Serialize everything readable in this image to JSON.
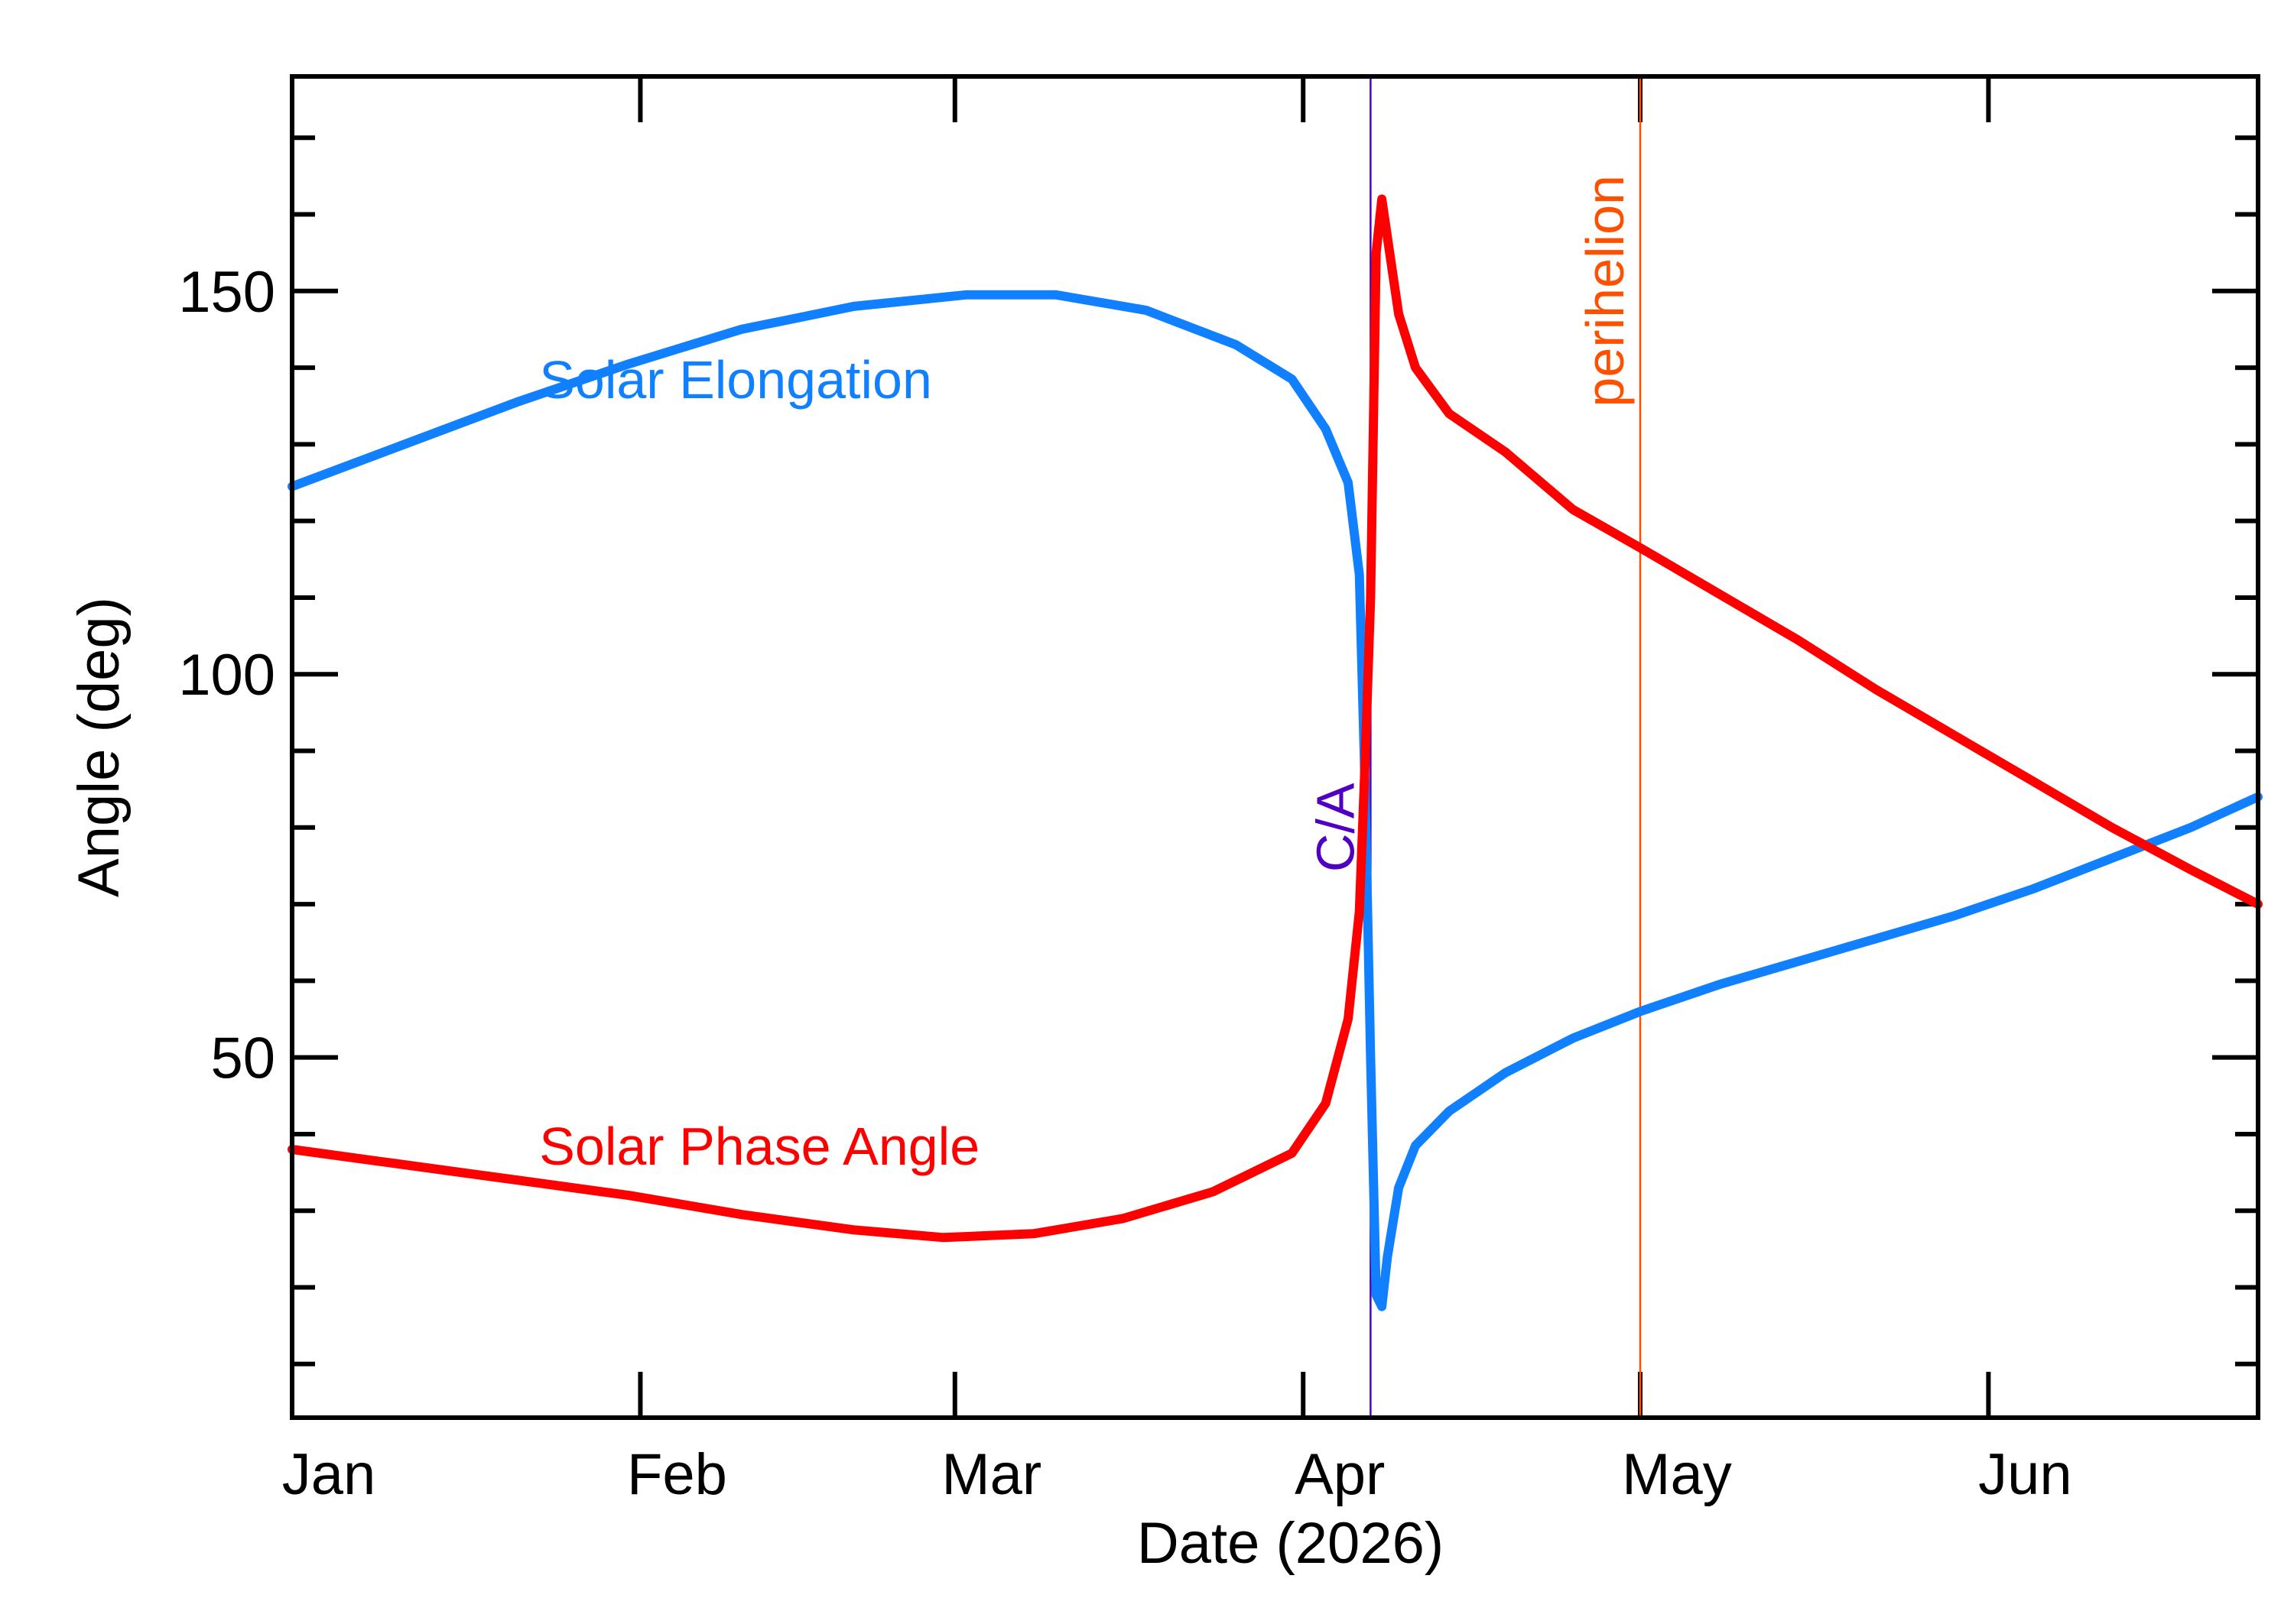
{
  "chart_data": {
    "type": "line",
    "xlabel": "Date (2026)",
    "ylabel": "Angle (deg)",
    "xlim": [
      "2026-01-01",
      "2026-06-25"
    ],
    "ylim": [
      3,
      178
    ],
    "x_ticks": [
      {
        "date": "2026-01-01",
        "label": "Jan"
      },
      {
        "date": "2026-02-01",
        "label": "Feb"
      },
      {
        "date": "2026-03-01",
        "label": "Mar"
      },
      {
        "date": "2026-04-01",
        "label": "Apr"
      },
      {
        "date": "2026-05-01",
        "label": "May"
      },
      {
        "date": "2026-06-01",
        "label": "Jun"
      }
    ],
    "y_major_ticks": [
      50,
      100,
      150
    ],
    "y_minor_ticks": [
      10,
      20,
      30,
      40,
      60,
      70,
      80,
      90,
      110,
      120,
      130,
      140,
      160,
      170
    ],
    "grid": false,
    "legend": "none",
    "series": [
      {
        "name": "Solar Elongation",
        "color": "#1080ff",
        "points": [
          [
            "2026-01-01",
            124.5
          ],
          [
            "2026-01-11",
            130.0
          ],
          [
            "2026-01-21",
            135.5
          ],
          [
            "2026-01-31",
            140.5
          ],
          [
            "2026-02-10",
            145.0
          ],
          [
            "2026-02-20",
            148.0
          ],
          [
            "2026-03-02",
            149.5
          ],
          [
            "2026-03-10",
            149.5
          ],
          [
            "2026-03-18",
            147.5
          ],
          [
            "2026-03-26",
            143.0
          ],
          [
            "2026-03-31",
            138.5
          ],
          [
            "2026-04-03",
            132.0
          ],
          [
            "2026-04-05",
            125.0
          ],
          [
            "2026-04-06",
            113.0
          ],
          [
            "2026-04-06T12:00",
            86.0
          ],
          [
            "2026-04-07",
            50.0
          ],
          [
            "2026-04-07T12:00",
            19.0
          ],
          [
            "2026-04-08",
            17.5
          ],
          [
            "2026-04-08T12:00",
            24.0
          ],
          [
            "2026-04-09T12:00",
            33.0
          ],
          [
            "2026-04-11",
            38.5
          ],
          [
            "2026-04-14",
            43.0
          ],
          [
            "2026-04-19",
            48.0
          ],
          [
            "2026-04-25",
            52.5
          ],
          [
            "2026-05-01",
            56.0
          ],
          [
            "2026-05-08",
            59.5
          ],
          [
            "2026-05-15",
            62.5
          ],
          [
            "2026-05-22",
            65.5
          ],
          [
            "2026-05-29",
            68.5
          ],
          [
            "2026-06-05",
            72.0
          ],
          [
            "2026-06-12",
            76.0
          ],
          [
            "2026-06-19",
            80.0
          ],
          [
            "2026-06-25",
            84.0
          ]
        ]
      },
      {
        "name": "Solar Phase Angle",
        "color": "#ff0000",
        "points": [
          [
            "2026-01-01",
            38.0
          ],
          [
            "2026-01-11",
            36.0
          ],
          [
            "2026-01-21",
            34.0
          ],
          [
            "2026-01-31",
            32.0
          ],
          [
            "2026-02-10",
            29.5
          ],
          [
            "2026-02-20",
            27.5
          ],
          [
            "2026-02-28",
            26.5
          ],
          [
            "2026-03-08",
            27.0
          ],
          [
            "2026-03-16",
            29.0
          ],
          [
            "2026-03-24",
            32.5
          ],
          [
            "2026-03-31",
            37.5
          ],
          [
            "2026-04-03",
            44.0
          ],
          [
            "2026-04-05",
            55.0
          ],
          [
            "2026-04-06",
            69.0
          ],
          [
            "2026-04-06T12:00",
            88.0
          ],
          [
            "2026-04-07",
            110.0
          ],
          [
            "2026-04-07T12:00",
            155.0
          ],
          [
            "2026-04-08",
            162.0
          ],
          [
            "2026-04-08T12:00",
            157.0
          ],
          [
            "2026-04-09T12:00",
            147.0
          ],
          [
            "2026-04-11",
            140.0
          ],
          [
            "2026-04-14",
            134.0
          ],
          [
            "2026-04-19",
            129.0
          ],
          [
            "2026-04-25",
            121.5
          ],
          [
            "2026-05-01",
            116.5
          ],
          [
            "2026-05-08",
            110.5
          ],
          [
            "2026-05-15",
            104.5
          ],
          [
            "2026-05-22",
            98.0
          ],
          [
            "2026-05-29",
            92.0
          ],
          [
            "2026-06-05",
            86.0
          ],
          [
            "2026-06-12",
            80.0
          ],
          [
            "2026-06-19",
            74.5
          ],
          [
            "2026-06-25",
            70.0
          ]
        ]
      }
    ],
    "series_labels": [
      {
        "text": "Solar Elongation",
        "date": "2026-01-23",
        "value": 136,
        "color": "#1080ff"
      },
      {
        "text": "Solar Phase Angle",
        "date": "2026-01-23",
        "value": 36,
        "color": "#ff0000"
      }
    ],
    "events": [
      {
        "label": "C/A",
        "date": "2026-04-07",
        "color": "#5000c0",
        "label_value": 80,
        "label_side": "left"
      },
      {
        "label": "perihelion",
        "date": "2026-05-01",
        "color": "#ff5000",
        "label_value": 150,
        "label_side": "left"
      }
    ]
  }
}
